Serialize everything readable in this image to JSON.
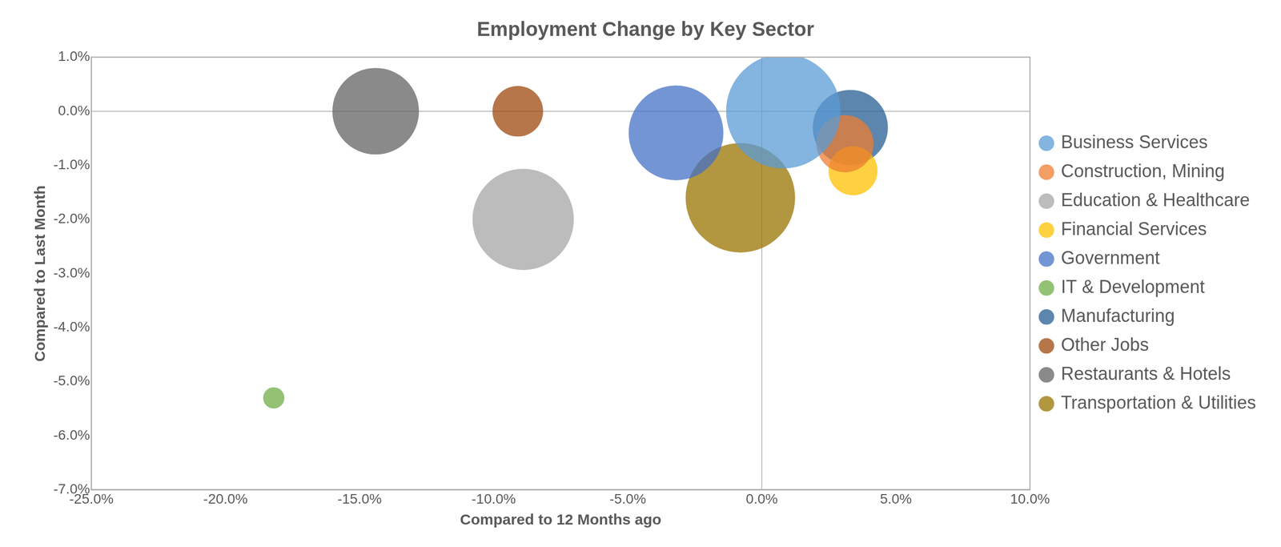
{
  "chart_data": {
    "type": "bubble",
    "title": "Employment Change by Key Sector",
    "x_label": "Compared to 12 Months ago",
    "y_label": "Compared to Last Month",
    "xlim": [
      -25,
      10
    ],
    "xticks": [
      {
        "value": -25,
        "label": "-25.0%"
      },
      {
        "value": -20,
        "label": "-20.0%"
      },
      {
        "value": -15,
        "label": "-15.0%"
      },
      {
        "value": -10,
        "label": "-10.0%"
      },
      {
        "value": -5,
        "label": "-5.0%"
      },
      {
        "value": 0,
        "label": "0.0%"
      },
      {
        "value": 5,
        "label": "5.0%"
      },
      {
        "value": 10,
        "label": "10.0%"
      }
    ],
    "ylim": [
      -7,
      1
    ],
    "yticks": [
      {
        "value": -7,
        "label": "-7.0%"
      },
      {
        "value": -6,
        "label": "-6.0%"
      },
      {
        "value": -5,
        "label": "-5.0%"
      },
      {
        "value": -4,
        "label": "-4.0%"
      },
      {
        "value": -3,
        "label": "-3.0%"
      },
      {
        "value": -2,
        "label": "-2.0%"
      },
      {
        "value": -1,
        "label": "-1.0%"
      },
      {
        "value": 0,
        "label": "0.0%"
      },
      {
        "value": 1,
        "label": "1.0%"
      }
    ],
    "grid": false,
    "legend": "right",
    "series": [
      {
        "name": "Business Services",
        "color": "#5B9BD5",
        "x": 0.8,
        "y": 0.0,
        "size": 4900
      },
      {
        "name": "Construction, Mining",
        "color": "#ED7D31",
        "x": 3.1,
        "y": -0.6,
        "size": 1225
      },
      {
        "name": "Education & Healthcare",
        "color": "#A5A5A5",
        "x": -8.9,
        "y": -2.0,
        "size": 3844
      },
      {
        "name": "Financial Services",
        "color": "#FFC000",
        "x": 3.4,
        "y": -1.1,
        "size": 900
      },
      {
        "name": "Government",
        "color": "#4472C4",
        "x": -3.2,
        "y": -0.4,
        "size": 3364
      },
      {
        "name": "IT & Development",
        "color": "#70AD47",
        "x": -18.2,
        "y": -5.3,
        "size": 169
      },
      {
        "name": "Manufacturing",
        "color": "#255E91",
        "x": 3.3,
        "y": -0.3,
        "size": 2116
      },
      {
        "name": "Other Jobs",
        "color": "#9E480E",
        "x": -9.1,
        "y": 0.0,
        "size": 961
      },
      {
        "name": "Restaurants & Hotels",
        "color": "#636363",
        "x": -14.4,
        "y": 0.0,
        "size": 2809
      },
      {
        "name": "Transportation & Utilities",
        "color": "#997300",
        "x": -0.8,
        "y": -1.6,
        "size": 4489
      }
    ]
  }
}
